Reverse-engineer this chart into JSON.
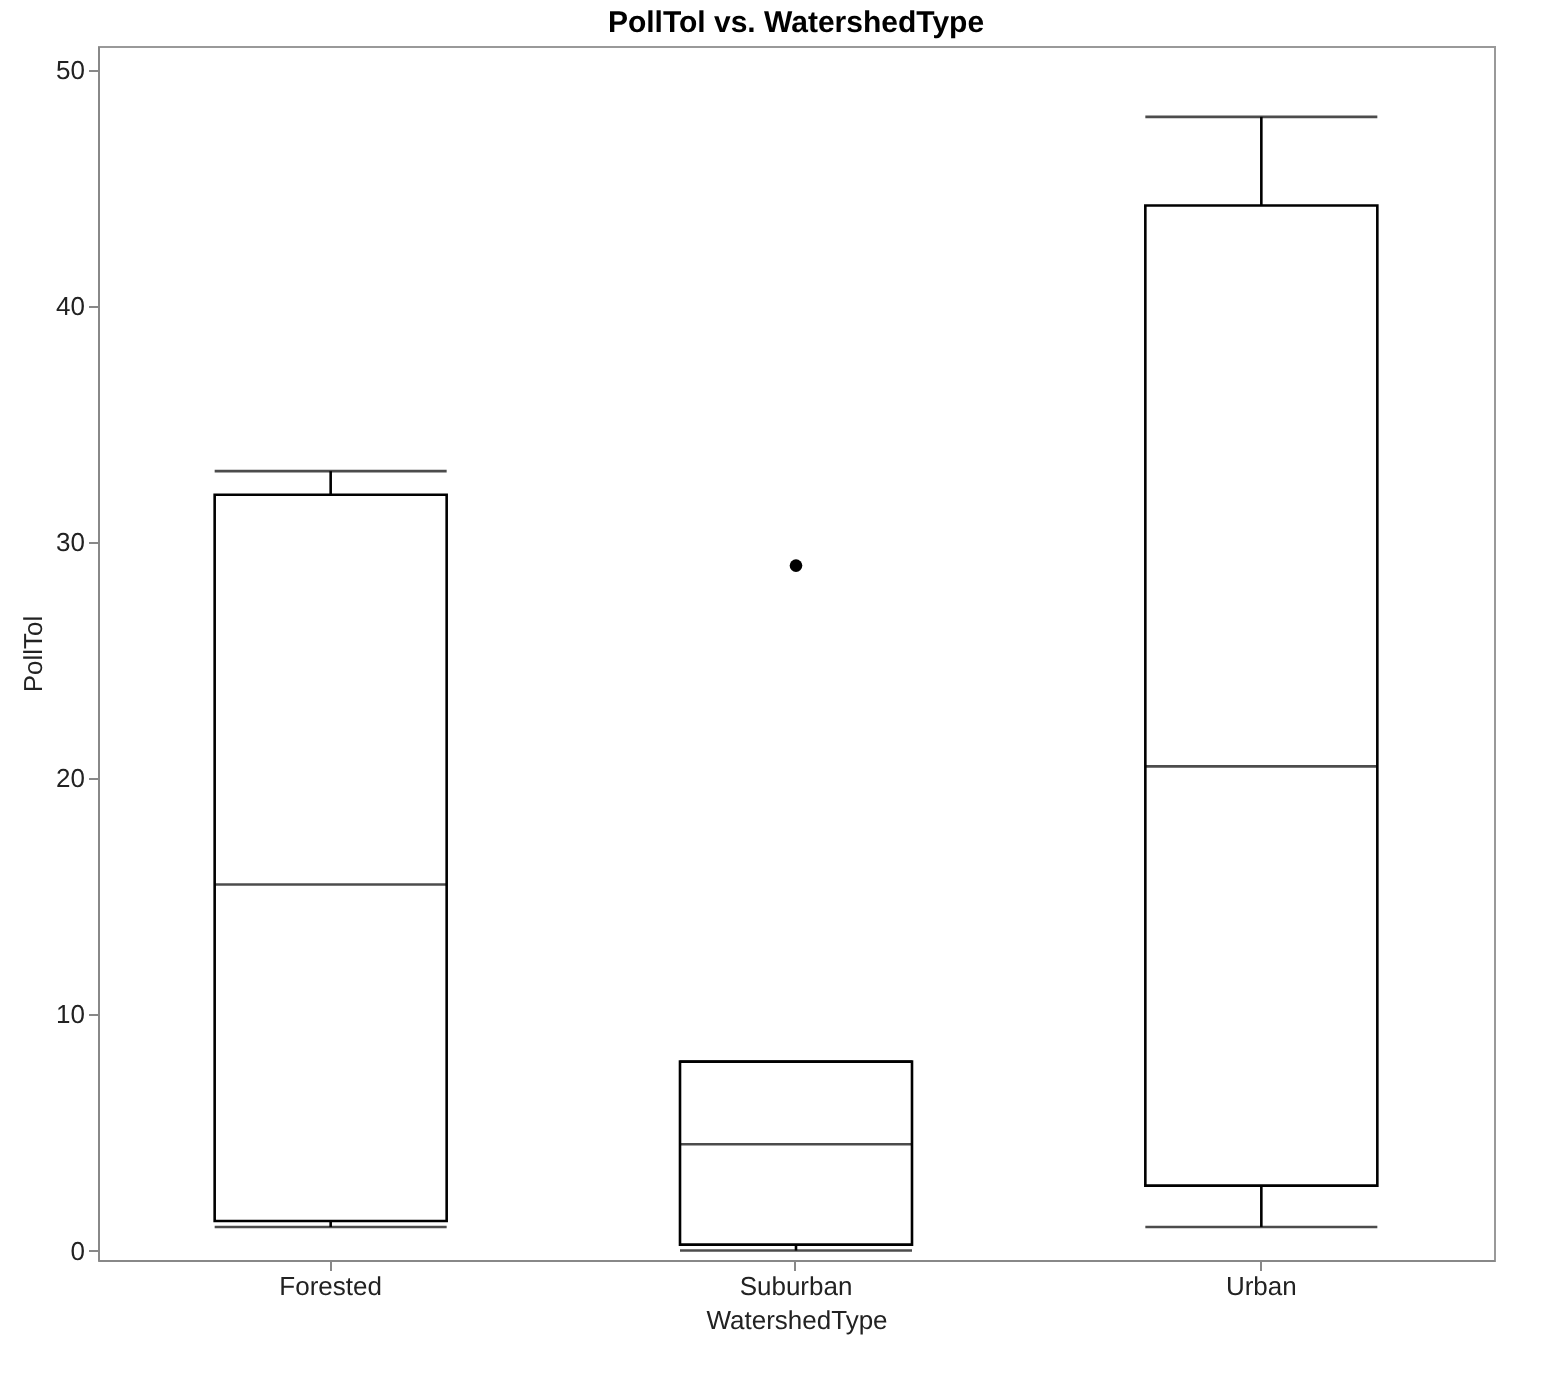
{
  "chart_data": {
    "type": "box",
    "title": "PollTol vs. WatershedType",
    "xlabel": "WatershedType",
    "ylabel": "PollTol",
    "categories": [
      "Forested",
      "Suburban",
      "Urban"
    ],
    "boxes": [
      {
        "low": 1,
        "q1": 1.25,
        "median": 15.5,
        "q3": 32,
        "high": 33
      },
      {
        "low": 0,
        "q1": 0.25,
        "median": 4.5,
        "q3": 8,
        "high": 8,
        "outliers": [
          29
        ]
      },
      {
        "low": 1,
        "q1": 2.75,
        "median": 20.5,
        "q3": 44.25,
        "high": 48
      }
    ],
    "ylim": [
      -0.4,
      51
    ],
    "yticks": [
      0,
      10,
      20,
      30,
      40,
      50
    ],
    "grid": false
  }
}
